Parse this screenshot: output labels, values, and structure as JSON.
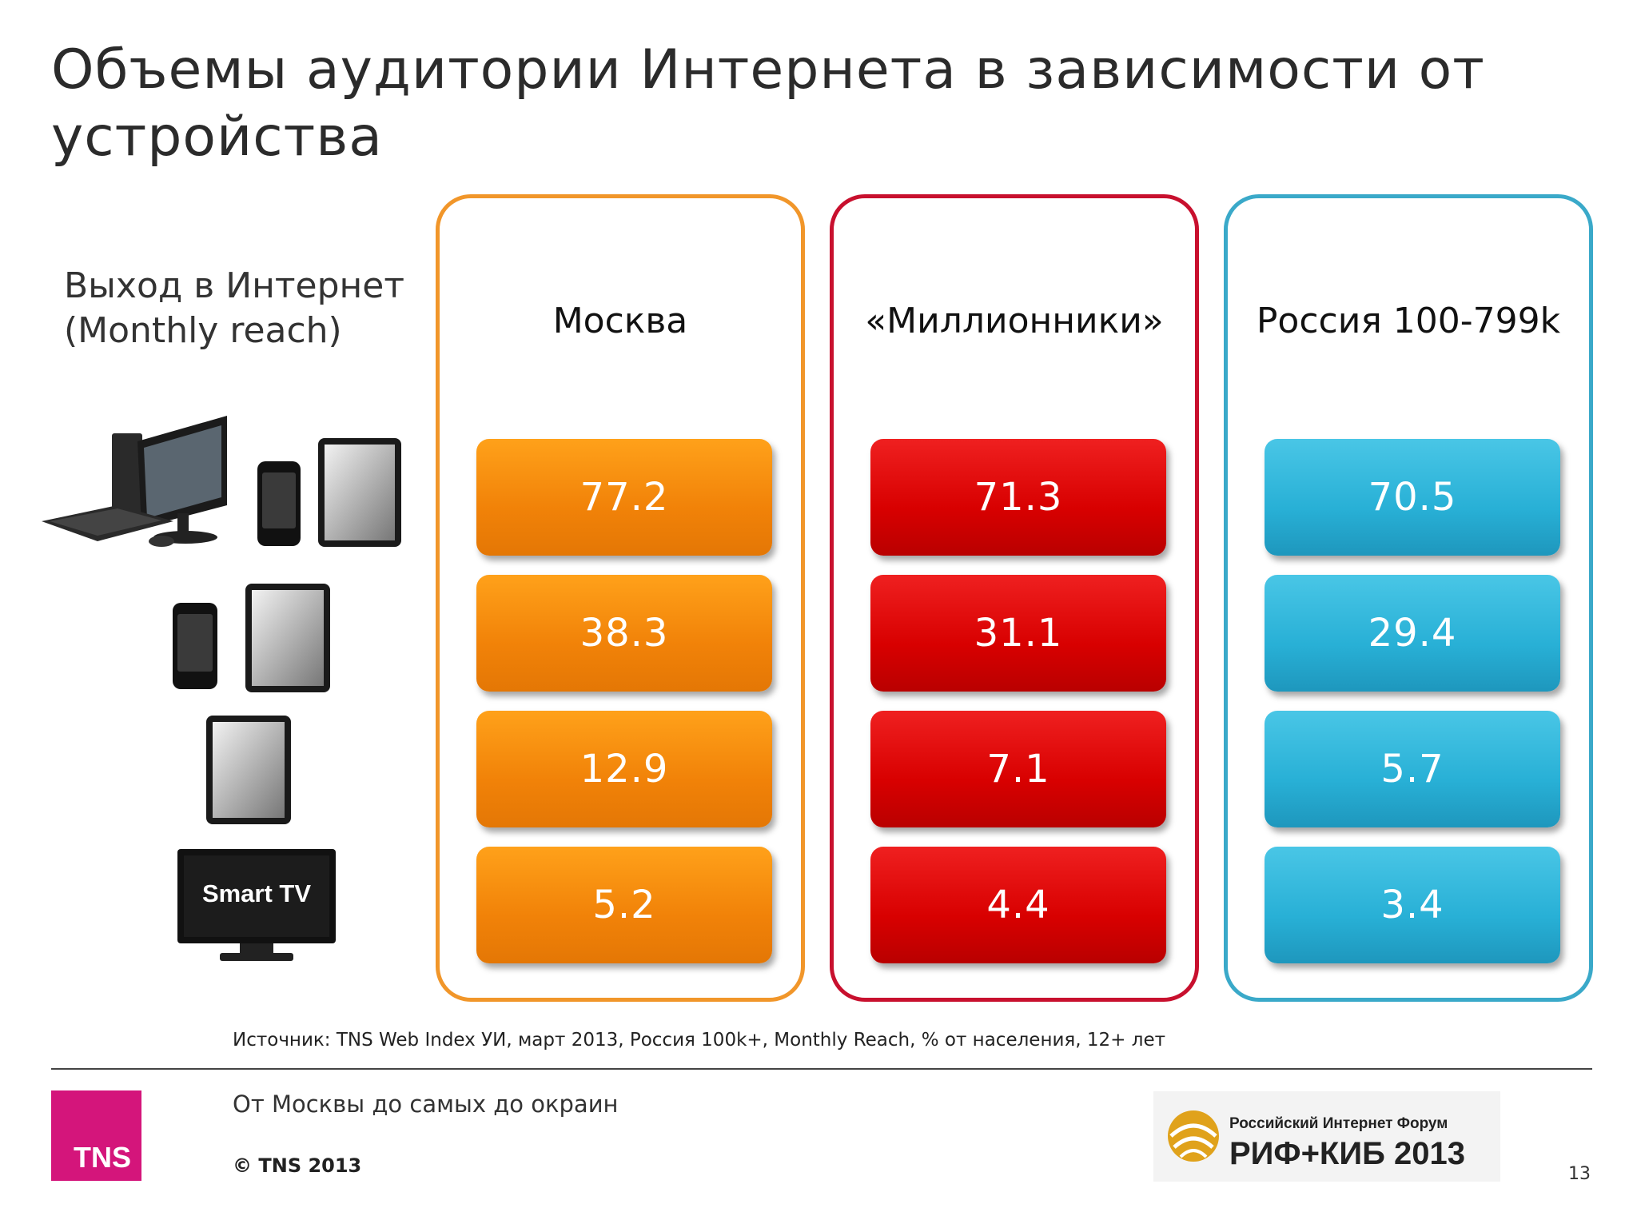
{
  "slide": {
    "title": "Объемы аудитории Интернета в зависимости от устройства",
    "row_label_line1": "Выход в Интернет",
    "row_label_line2": "(Monthly reach)",
    "source": "Источник: TNS Web Index УИ, март 2013, Россия 100k+, Monthly Reach, % от населения, 12+ лет",
    "tagline": "От Москвы до самых до окраин",
    "copyright": "© TNS 2013",
    "page_number": "13"
  },
  "devices": {
    "row0": [
      "desktop-computer-icon",
      "smartphone-icon",
      "tablet-icon"
    ],
    "row1": [
      "smartphone-icon",
      "tablet-icon"
    ],
    "row2": [
      "tablet-icon"
    ],
    "row3": [
      "smart-tv-icon"
    ],
    "smart_tv_label": "Smart TV"
  },
  "colors": {
    "moscow": "#f18208",
    "millionniki": "#d80000",
    "russia": "#28b0d6"
  },
  "regions": [
    {
      "name": "Москва",
      "values": [
        "77.2",
        "38.3",
        "12.9",
        "5.2"
      ]
    },
    {
      "name": "«Миллионники»",
      "values": [
        "71.3",
        "31.1",
        "7.1",
        "4.4"
      ]
    },
    {
      "name": "Россия 100-799k",
      "values": [
        "70.5",
        "29.4",
        "5.7",
        "3.4"
      ]
    }
  ],
  "logos": {
    "tns": "TNS",
    "rif_small": "Российский Интернет Форум",
    "rif_big": "РИФ+КИБ 2013"
  }
}
